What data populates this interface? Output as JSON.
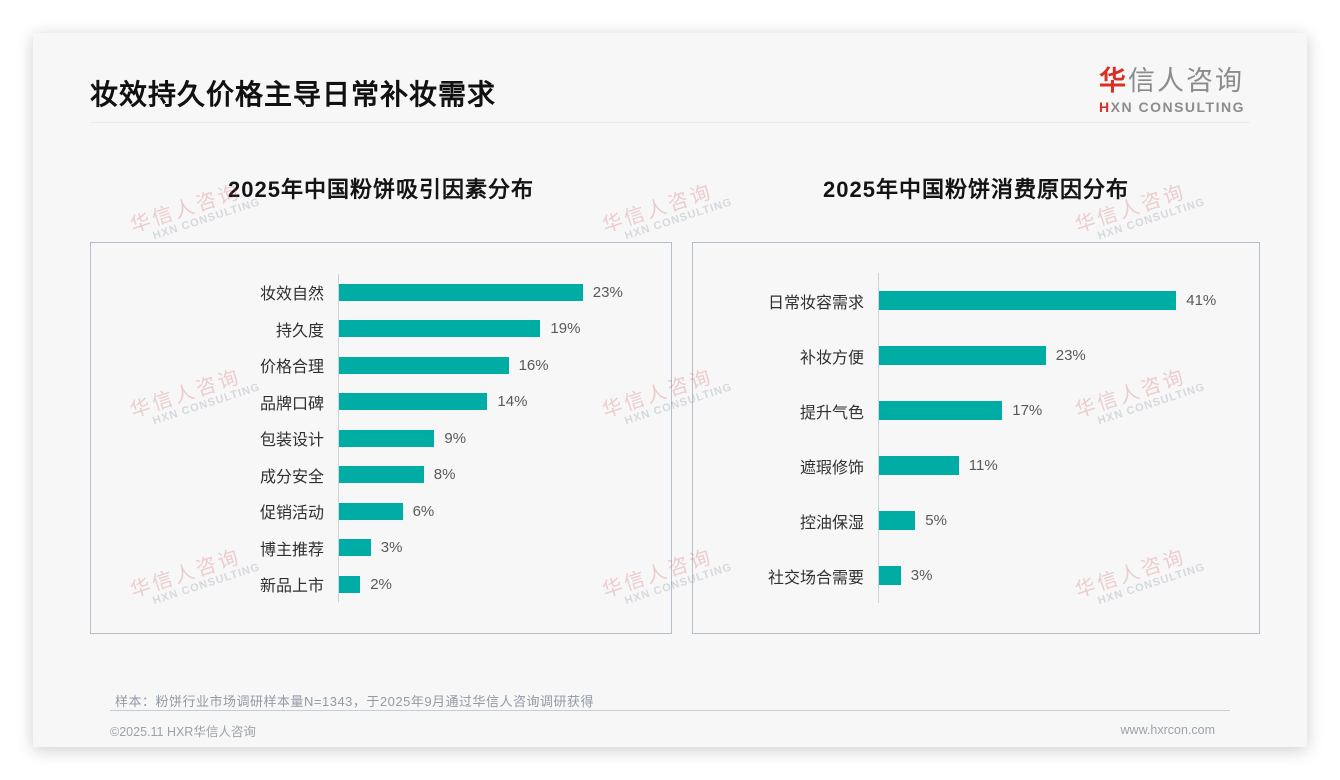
{
  "page_title": "妆效持久价格主导日常补妆需求",
  "logo": {
    "brand_accent": "华",
    "brand_rest": "信人咨询",
    "sub_accent": "H",
    "sub_rest": "XN CONSULTING"
  },
  "watermark": {
    "line1": "华信人咨询",
    "line2": "HXN CONSULTING"
  },
  "colors": {
    "bar": "#00ada5",
    "accent_red": "#d93025"
  },
  "chart_data": [
    {
      "type": "bar",
      "orientation": "horizontal",
      "title": "2025年中国粉饼吸引因素分布",
      "categories": [
        "妆效自然",
        "持久度",
        "价格合理",
        "品牌口碑",
        "包装设计",
        "成分安全",
        "促销活动",
        "博主推荐",
        "新品上市"
      ],
      "values": [
        23,
        19,
        16,
        14,
        9,
        8,
        6,
        3,
        2
      ],
      "unit": "%",
      "xlim": [
        0,
        25
      ],
      "grid": false,
      "legend": false,
      "bar_color": "#00ada5"
    },
    {
      "type": "bar",
      "orientation": "horizontal",
      "title": "2025年中国粉饼消费原因分布",
      "categories": [
        "日常妆容需求",
        "补妆方便",
        "提升气色",
        "遮瑕修饰",
        "控油保湿",
        "社交场合需要"
      ],
      "values": [
        41,
        23,
        17,
        11,
        5,
        3
      ],
      "unit": "%",
      "xlim": [
        0,
        45
      ],
      "grid": false,
      "legend": false,
      "bar_color": "#00ada5"
    }
  ],
  "footnote": "样本：粉饼行业市场调研样本量N=1343，于2025年9月通过华信人咨询调研获得",
  "footer": {
    "left": "©2025.11 HXR华信人咨询",
    "right": "www.hxrcon.com"
  }
}
